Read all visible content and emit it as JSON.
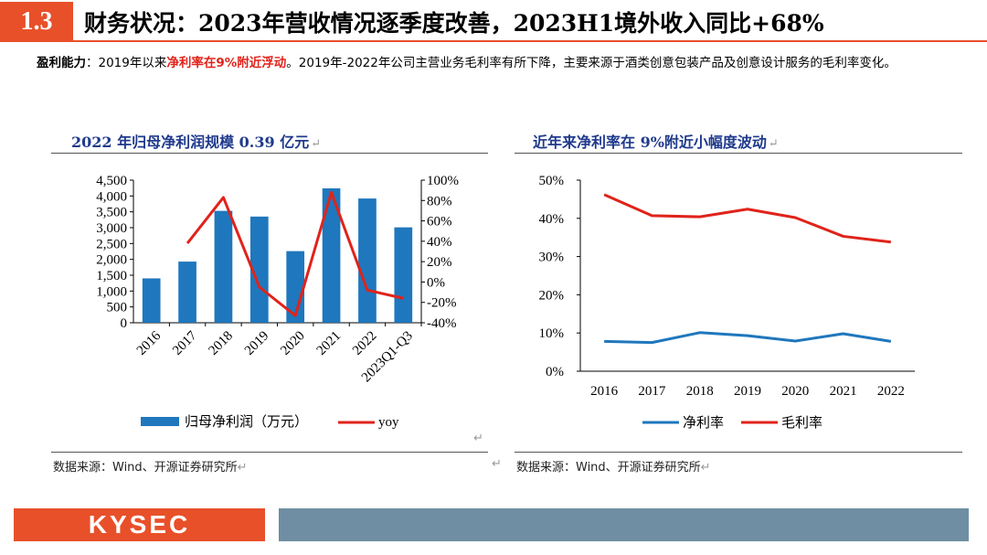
{
  "header": {
    "section": "1.3",
    "title": "财务状况：2023年营收情况逐季度改善，2023H1境外收入同比+68%"
  },
  "description": {
    "label": "盈利能力",
    "colon": "：",
    "pre": "2019年以来",
    "highlight": "净利率在9%附近浮动",
    "post": "。2019年-2022年公司主营业务毛利率有所下降，主要来源于酒类创意包装产品及创意设计服务的毛利率变化。"
  },
  "colors": {
    "accent": "#e8502a",
    "bar": "#1f77bd",
    "net": "#1f77bd",
    "gross": "#e0231b",
    "footer_bar": "#6f8ea3"
  },
  "return_mark": "↵",
  "left_chart": {
    "title": "2022 年归母净利润规模 0.39 亿元",
    "source": "数据来源：Wind、开源证券研究所"
  },
  "right_chart": {
    "title": "近年来净利率在 9%附近小幅度波动",
    "source": "数据来源：Wind、开源证券研究所"
  },
  "chart_data": [
    {
      "type": "bar",
      "categories": [
        "2016",
        "2017",
        "2018",
        "2019",
        "2020",
        "2021",
        "2022",
        "2023Q1-Q3"
      ],
      "series": [
        {
          "name": "归母净利润（万元）",
          "type": "bar",
          "axis": "left",
          "values": [
            1400,
            1930,
            3530,
            3350,
            2260,
            4240,
            3920,
            3010
          ]
        },
        {
          "name": "yoy",
          "type": "line",
          "axis": "right",
          "values": [
            null,
            0.38,
            0.83,
            -0.05,
            -0.33,
            0.88,
            -0.08,
            -0.16
          ]
        }
      ],
      "y_left": {
        "min": 0,
        "max": 4500,
        "ticks": [
          "0",
          "500",
          "1,000",
          "1,500",
          "2,000",
          "2,500",
          "3,000",
          "3,500",
          "4,000",
          "4,500"
        ]
      },
      "y_right": {
        "min": -0.4,
        "max": 1.0,
        "ticks": [
          "-40%",
          "-20%",
          "0%",
          "20%",
          "40%",
          "60%",
          "80%",
          "100%"
        ]
      },
      "legend": "bottom"
    },
    {
      "type": "line",
      "categories": [
        "2016",
        "2017",
        "2018",
        "2019",
        "2020",
        "2021",
        "2022"
      ],
      "series": [
        {
          "name": "净利率",
          "values": [
            0.078,
            0.075,
            0.101,
            0.093,
            0.079,
            0.098,
            0.078
          ]
        },
        {
          "name": "毛利率",
          "values": [
            0.462,
            0.407,
            0.404,
            0.424,
            0.402,
            0.353,
            0.338
          ]
        }
      ],
      "y": {
        "min": 0,
        "max": 0.5,
        "ticks": [
          "0%",
          "10%",
          "20%",
          "30%",
          "40%",
          "50%"
        ]
      },
      "legend": "bottom"
    }
  ],
  "footer": {
    "logo": "KYSEC"
  }
}
